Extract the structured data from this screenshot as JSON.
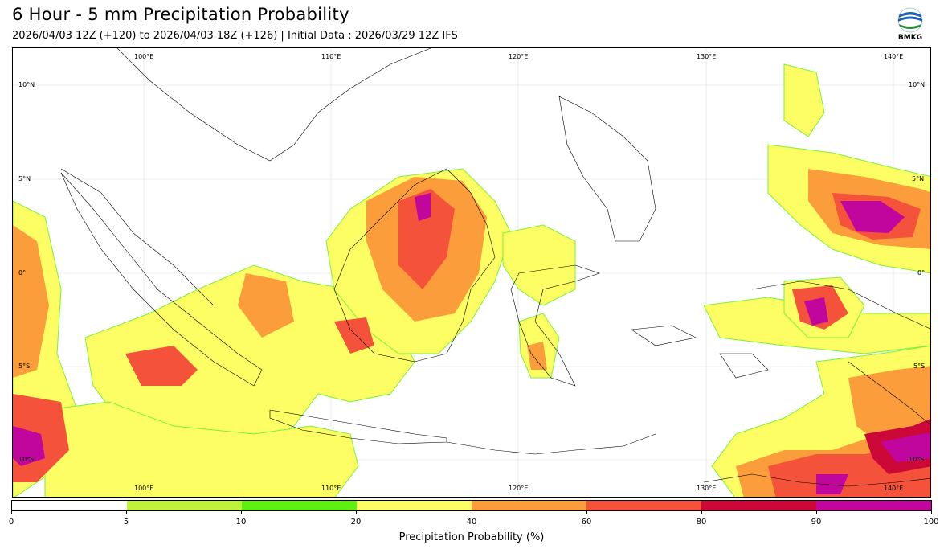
{
  "header": {
    "title": "6 Hour - 5 mm Precipitation Probability",
    "subtitle": "2026/04/03 12Z (+120) to 2026/04/03 18Z (+126) | Initial Data : 2026/03/29 12Z IFS"
  },
  "logo": {
    "text": "BMKG",
    "icon": "bmkg-logo-icon"
  },
  "map": {
    "lon_labels": [
      "100°E",
      "110°E",
      "120°E",
      "130°E",
      "140°E"
    ],
    "lat_labels": [
      "10°N",
      "5°N",
      "0°",
      "5°S",
      "10°S"
    ]
  },
  "colorbar": {
    "ticks": [
      "0",
      "5",
      "10",
      "20",
      "40",
      "60",
      "80",
      "90",
      "100"
    ],
    "colors": [
      "#ffffff",
      "#c1f23b",
      "#5ff012",
      "#fdfd64",
      "#fb9d3a",
      "#f4523a",
      "#cc0839",
      "#c0069d"
    ],
    "label": "Precipitation Probability (%)"
  }
}
